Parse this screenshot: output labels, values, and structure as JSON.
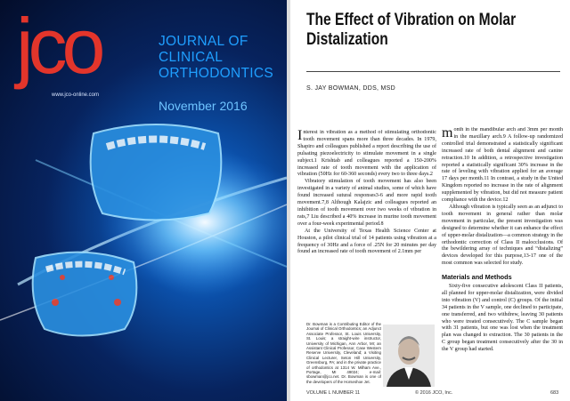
{
  "cover": {
    "logo": "jco",
    "url": "www.jco-online.com",
    "journal_title": [
      "JOURNAL OF",
      "CLINICAL",
      "ORTHODONTICS"
    ],
    "date": "November 2016"
  },
  "article": {
    "title": "The Effect of Vibration on Molar Distalization",
    "author": "S. JAY BOWMAN, DDS, MSD",
    "column1": [
      "Interest in vibration as a method of stimulating orthodontic tooth movement spans more than three decades. In 1979, Shapiro and colleagues published a report describing the use of pulsating piezoelectricity to stimulate movement in a single subject.1 Krishtab and colleagues reported a 150-200% increased rate of tooth movement with the application of vibration (50Hz for 60-360 seconds) every two to three days.2",
      "Vibratory stimulation of tooth movement has also been investigated in a variety of animal studies, some of which have found increased sutural responses3-6 and more rapid tooth movement.7,8 Although Kalajzic and colleagues reported an inhibition of tooth movement over two weeks of vibration in rats,7 Liu described a 40% increase in murine tooth movement over a four-week experimental period.8",
      "At the University of Texas Health Science Center at Houston, a pilot clinical trial of 14 patients using vibration at a frequency of 30Hz and a force of .25N for 20 minutes per day found an increased rate of tooth movement of 2.1mm per"
    ],
    "column2": [
      "month in the mandibular arch and 3mm per month in the maxillary arch.9 A follow-up randomized controlled trial demonstrated a statistically significant increased rate of both dental alignment and canine retraction.10 In addition, a retrospective investigation reported a statistically significant 30% increase in the rate of leveling with vibration applied for an average 17 days per month.11 In contrast, a study in the United Kingdom reported no increase in the rate of alignment supplemented by vibration, but did not measure patient compliance with the device.12",
      "Although vibration is typically seen as an adjunct to tooth movement in general rather than molar movement in particular, the present investigation was designed to determine whether it can enhance the effect of upper-molar distalization—a common strategy in the orthodontic correction of Class II malocclusions. Of the bewildering array of techniques and “distalizing” devices developed for this purpose,13-17 one of the most common was selected for study."
    ],
    "section_heading": "Materials and Methods",
    "section_paragraph": "Sixty-five consecutive adolescent Class II patients, all planned for upper-molar distalization, were divided into vibration (V) and control (C) groups. Of the initial 34 patients in the V sample, one declined to participate, one transferred, and two withdrew, leaving 30 patients who were treated consecutively. The C sample began with 31 patients, but one was lost when the treatment plan was changed to extraction. The 30 patients in the C group began treatment consecutively after the 30 in the V group had started.",
    "bio": "Dr. Bowman is a Contributing Editor of the Journal of Clinical Orthodontics; an Adjunct Associate Professor, St. Louis University, St. Louis; a straight-wire instructor, University of Michigan, Ann Arbor, MI; an Assistant Clinical Professor, Case Western Reserve University, Cleveland; a Visiting Clinical Lecturer, Seton Hill University, Greensburg, PA; and in the private practice of orthodontics at 1314 W. Milham Ave., Portage, MI 49024; e-mail: sbowman@jco.net. Dr. Bowman is one of the developers of the Horseshoe Jet.",
    "footer": {
      "volume": "VOLUME L  NUMBER 11",
      "copyright": "© 2016 JCO, Inc.",
      "page": "683"
    }
  }
}
